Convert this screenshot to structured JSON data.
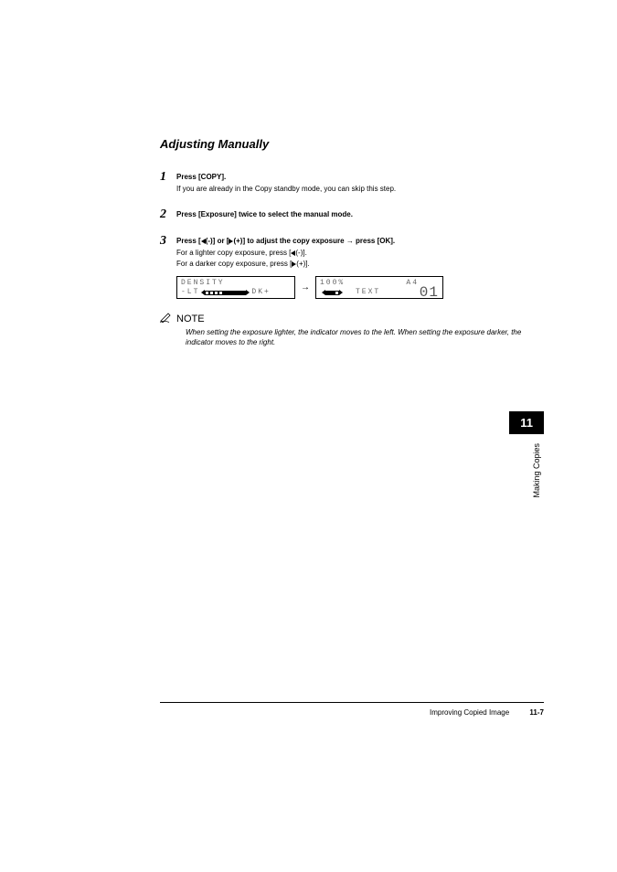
{
  "section_title": "Adjusting Manually",
  "steps": [
    {
      "num": "1",
      "head": "Press [COPY].",
      "subs": [
        "If you are already in the Copy standby mode, you can skip this step."
      ]
    },
    {
      "num": "2",
      "head": "Press [Exposure] twice to select the manual mode.",
      "subs": []
    },
    {
      "num": "3",
      "head_parts": {
        "p1": "Press [",
        "p2": "(-)] or [",
        "p3": "(+)] to adjust the copy exposure ",
        "p4": " press [OK]."
      },
      "sub_parts": [
        {
          "pre": "For a lighter copy exposure, press [",
          "post": "(-)]."
        },
        {
          "pre": "For a darker copy exposure, press [",
          "post": "(+)]."
        }
      ]
    }
  ],
  "lcd1": {
    "line1": "DENSITY",
    "left_label": "-LT",
    "right_label": "DK+",
    "meter_total": 9,
    "meter_filled_from": 5
  },
  "lcd2": {
    "percent": "100%",
    "size": "A4",
    "mode": "TEXT",
    "count": "01",
    "meter_total": 3,
    "meter_filled": 2
  },
  "note": {
    "label": "NOTE",
    "text": "When setting the exposure lighter, the indicator moves to the left. When setting the exposure darker, the indicator moves to the right."
  },
  "side": {
    "chapter": "11",
    "label": "Making Copies"
  },
  "footer": {
    "title": "Improving Copied Image",
    "page": "11-7"
  },
  "colors": {
    "text": "#000000",
    "lcd_text": "#666666",
    "bg": "#ffffff"
  }
}
